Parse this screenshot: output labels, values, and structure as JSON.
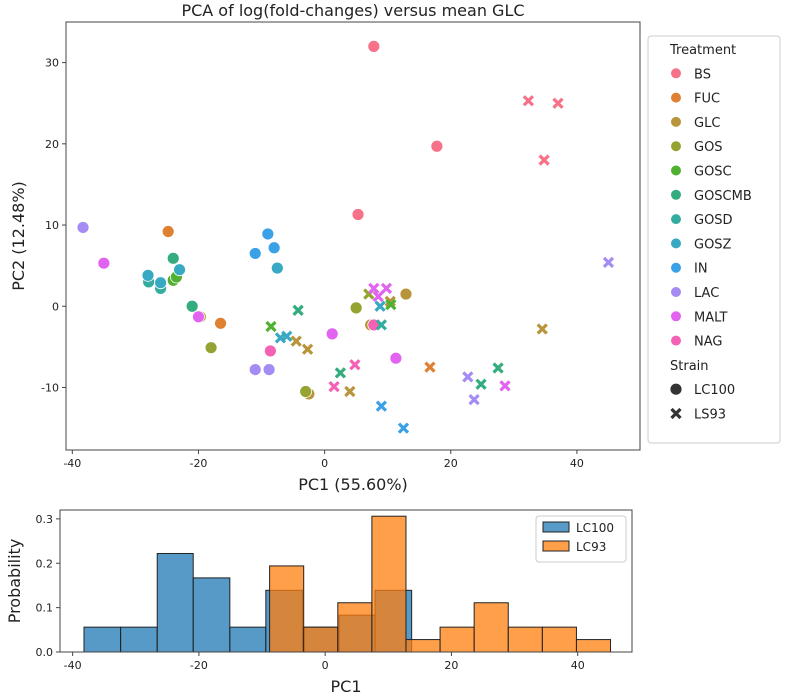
{
  "chart_data": [
    {
      "type": "scatter",
      "title": "PCA of log(fold-changes) versus mean GLC",
      "xlabel": "PC1 (55.60%)",
      "ylabel": "PC2 (12.48%)",
      "xlim": [
        -41,
        50
      ],
      "ylim": [
        -17.7,
        35
      ],
      "xticks": [
        -40,
        -20,
        0,
        20,
        40
      ],
      "yticks": [
        -10,
        0,
        10,
        20,
        30
      ],
      "grid": false,
      "legend": {
        "placement": "outside-right",
        "hue_title": "Treatment",
        "style_title": "Strain",
        "strains": [
          {
            "name": "LC100",
            "marker": "circle"
          },
          {
            "name": "LS93",
            "marker": "x"
          }
        ]
      },
      "treatments": [
        {
          "name": "BS",
          "color": "#f77189"
        },
        {
          "name": "FUC",
          "color": "#e08032"
        },
        {
          "name": "GLC",
          "color": "#b8953a"
        },
        {
          "name": "GOS",
          "color": "#96a332"
        },
        {
          "name": "GOSC",
          "color": "#4fb032"
        },
        {
          "name": "GOSCMB",
          "color": "#33ac7e"
        },
        {
          "name": "GOSD",
          "color": "#35ad9e"
        },
        {
          "name": "GOSZ",
          "color": "#38a9c2"
        },
        {
          "name": "IN",
          "color": "#3aa1e6"
        },
        {
          "name": "LAC",
          "color": "#a48cf4"
        },
        {
          "name": "MALT",
          "color": "#e163f0"
        },
        {
          "name": "NAG",
          "color": "#f561b4"
        }
      ],
      "points": [
        [
          "BS",
          "LC100",
          7.8,
          32
        ],
        [
          "BS",
          "LC100",
          17.8,
          19.7
        ],
        [
          "BS",
          "LC100",
          5.3,
          11.3
        ],
        [
          "FUC",
          "LC100",
          -24.8,
          9.2
        ],
        [
          "FUC",
          "LC100",
          -16.5,
          -2.1
        ],
        [
          "GLC",
          "LC100",
          12.9,
          1.5
        ],
        [
          "GLC",
          "LC100",
          -19.7,
          -1.3
        ],
        [
          "GLC",
          "LC100",
          -2.5,
          -10.8
        ],
        [
          "GLC",
          "LC100",
          7.3,
          -2.3
        ],
        [
          "GOS",
          "LC100",
          -18,
          -5.1
        ],
        [
          "GOS",
          "LC100",
          -3,
          -10.5
        ],
        [
          "GOS",
          "LC100",
          5,
          -0.2
        ],
        [
          "GOSC",
          "LC100",
          -24,
          3.2
        ],
        [
          "GOSC",
          "LC100",
          -23.5,
          3.6
        ],
        [
          "GOSCMB",
          "LC100",
          -24,
          5.9
        ],
        [
          "GOSCMB",
          "LC100",
          -21,
          0
        ],
        [
          "GOSD",
          "LC100",
          -26,
          2.2
        ],
        [
          "GOSD",
          "LC100",
          -27.9,
          3.0
        ],
        [
          "GOSZ",
          "LC100",
          -28,
          3.8
        ],
        [
          "GOSZ",
          "LC100",
          -23,
          4.5
        ],
        [
          "GOSZ",
          "LC100",
          -7.5,
          4.7
        ],
        [
          "GOSZ",
          "LC100",
          -26,
          2.9
        ],
        [
          "IN",
          "LC100",
          -9,
          8.9
        ],
        [
          "IN",
          "LC100",
          -8,
          7.2
        ],
        [
          "IN",
          "LC100",
          -11,
          6.5
        ],
        [
          "LAC",
          "LC100",
          -38.3,
          9.7
        ],
        [
          "LAC",
          "LC100",
          -11,
          -7.8
        ],
        [
          "LAC",
          "LC100",
          -8.8,
          -7.8
        ],
        [
          "MALT",
          "LC100",
          -35,
          5.3
        ],
        [
          "MALT",
          "LC100",
          -20,
          -1.3
        ],
        [
          "MALT",
          "LC100",
          1.2,
          -3.4
        ],
        [
          "MALT",
          "LC100",
          11.3,
          -6.4
        ],
        [
          "NAG",
          "LC100",
          -8.6,
          -5.5
        ],
        [
          "NAG",
          "LC100",
          7.8,
          -2.3
        ],
        [
          "BS",
          "LS93",
          32.3,
          25.3
        ],
        [
          "BS",
          "LS93",
          37,
          25
        ],
        [
          "BS",
          "LS93",
          34.8,
          18
        ],
        [
          "FUC",
          "LS93",
          16.7,
          -7.5
        ],
        [
          "GLC",
          "LS93",
          34.5,
          -2.8
        ],
        [
          "GLC",
          "LS93",
          -2.7,
          -5.3
        ],
        [
          "GLC",
          "LS93",
          4,
          -10.5
        ],
        [
          "GLC",
          "LS93",
          -4.5,
          -4.3
        ],
        [
          "GLC",
          "LS93",
          10.4,
          0.6
        ],
        [
          "GOS",
          "LS93",
          7,
          1.5
        ],
        [
          "GOSC",
          "LS93",
          -8.5,
          -2.5
        ],
        [
          "GOSC",
          "LS93",
          10.5,
          0.2
        ],
        [
          "GOSCMB",
          "LS93",
          -4.2,
          -0.5
        ],
        [
          "GOSCMB",
          "LS93",
          2.5,
          -8.2
        ],
        [
          "GOSCMB",
          "LS93",
          24.8,
          -9.6
        ],
        [
          "GOSCMB",
          "LS93",
          27.5,
          -7.6
        ],
        [
          "GOSD",
          "LS93",
          9,
          -2.3
        ],
        [
          "GOSZ",
          "LS93",
          8.8,
          0
        ],
        [
          "GOSZ",
          "LS93",
          -6,
          -3.7
        ],
        [
          "GOSZ",
          "LS93",
          -7,
          -3.9
        ],
        [
          "IN",
          "LS93",
          9,
          -12.3
        ],
        [
          "IN",
          "LS93",
          12.5,
          -15
        ],
        [
          "LAC",
          "LS93",
          22.7,
          -8.7
        ],
        [
          "LAC",
          "LS93",
          23.7,
          -11.5
        ],
        [
          "LAC",
          "LS93",
          45,
          5.4
        ],
        [
          "MALT",
          "LS93",
          7.8,
          2.2
        ],
        [
          "MALT",
          "LS93",
          9.8,
          2.2
        ],
        [
          "MALT",
          "LS93",
          8.5,
          1.2
        ],
        [
          "MALT",
          "LS93",
          28.6,
          -9.8
        ],
        [
          "NAG",
          "LS93",
          4.8,
          -7.2
        ],
        [
          "NAG",
          "LS93",
          1.5,
          -9.9
        ]
      ]
    },
    {
      "type": "bar",
      "subtype": "histogram",
      "xlabel": "PC1",
      "ylabel": "Probability",
      "xlim": [
        -42,
        48.6
      ],
      "ylim": [
        0,
        0.32
      ],
      "xticks": [
        -40,
        -20,
        0,
        20,
        40
      ],
      "yticks": [
        0.0,
        0.1,
        0.2,
        0.3
      ],
      "legend": {
        "placement": "top-right"
      },
      "series": [
        {
          "name": "LC100",
          "color": "#1f77b4",
          "edges": [
            -38.2,
            -32.4,
            -26.6,
            -20.9,
            -15.1,
            -9.4,
            -3.6,
            2.2,
            7.9,
            13.7
          ],
          "values": [
            0.056,
            0.056,
            0.222,
            0.167,
            0.056,
            0.139,
            0.056,
            0.083,
            0.139
          ]
        },
        {
          "name": "LC93",
          "color": "#ff7f0e",
          "edges": [
            -8.8,
            -3.4,
            2.0,
            7.4,
            12.8,
            18.2,
            23.6,
            29.0,
            34.4,
            39.8,
            45.2
          ],
          "values": [
            0.194,
            0.056,
            0.111,
            0.306,
            0.028,
            0.056,
            0.111,
            0.056,
            0.056,
            0.028
          ]
        }
      ]
    }
  ]
}
